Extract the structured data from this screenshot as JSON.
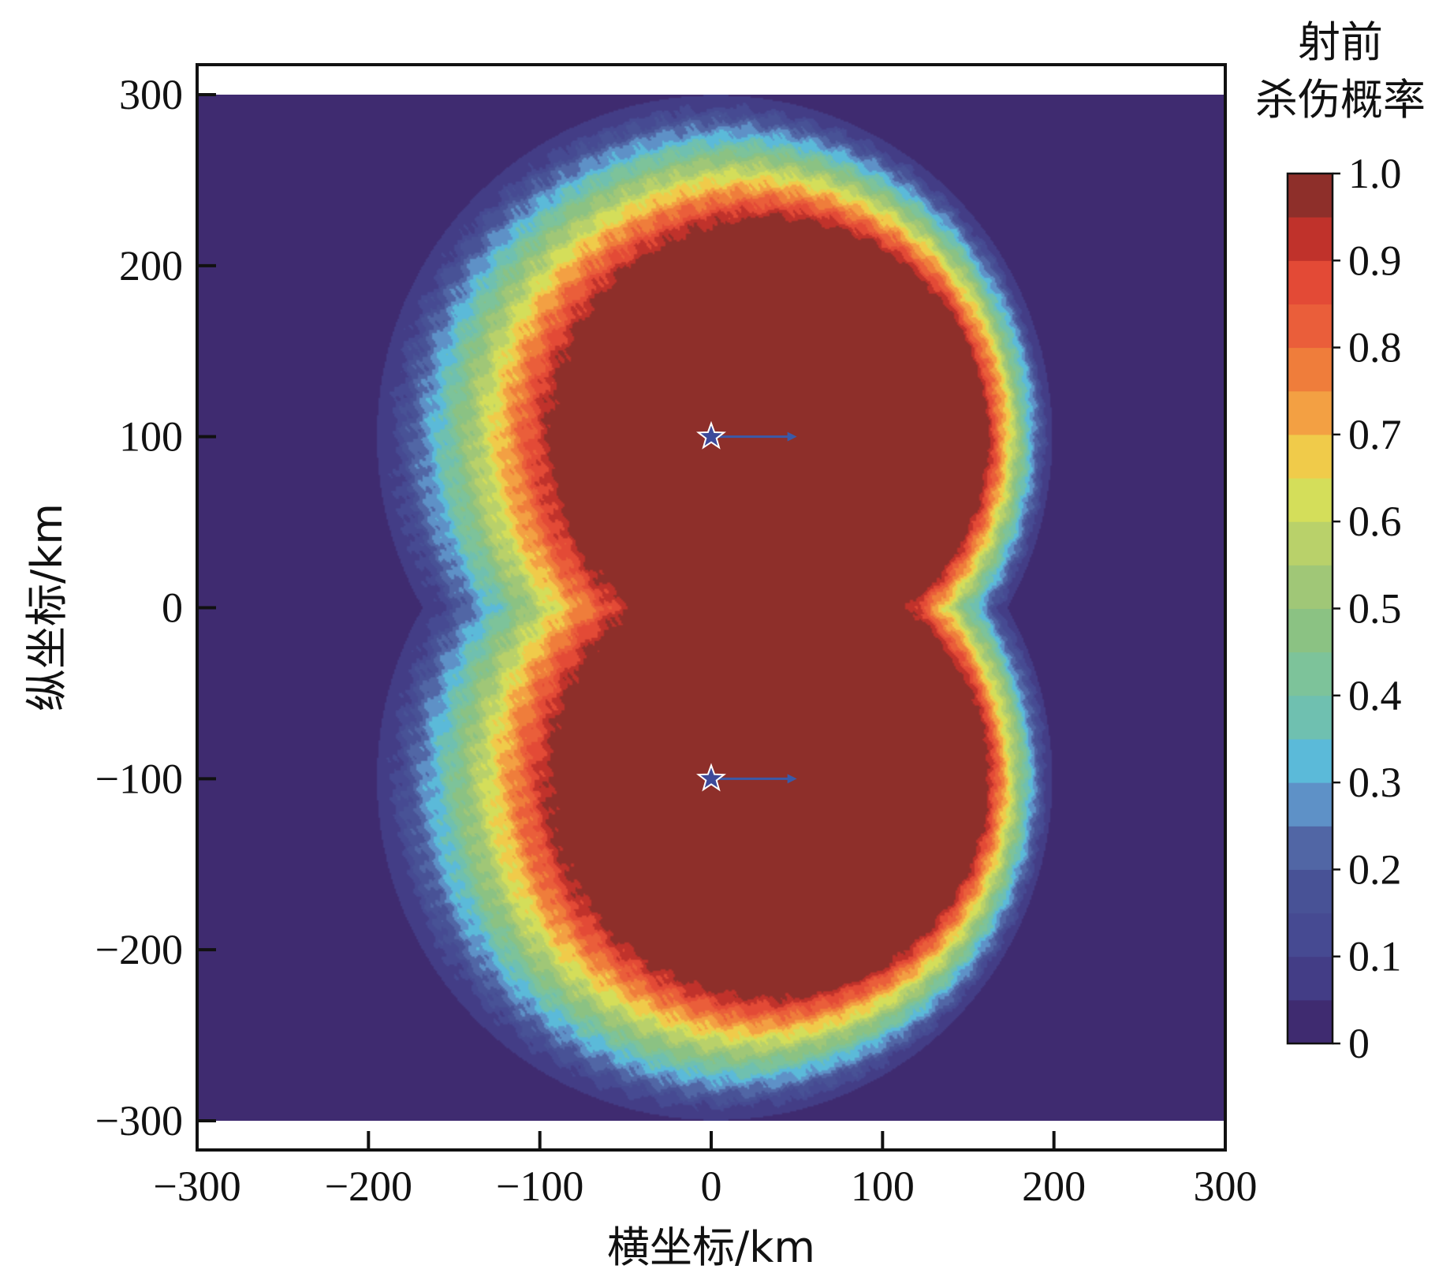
{
  "chart_data": {
    "type": "heatmap",
    "subtype": "filled-contour",
    "xlabel": "横坐标/km",
    "ylabel": "纵坐标/km",
    "xlim": [
      -300,
      300
    ],
    "ylim": [
      -300,
      300
    ],
    "xticks": [
      -300,
      -200,
      -100,
      0,
      100,
      200,
      300
    ],
    "yticks": [
      -300,
      -200,
      -100,
      0,
      100,
      200,
      300
    ],
    "xtick_labels": [
      "−300",
      "−200",
      "−100",
      "0",
      "100",
      "200",
      "300"
    ],
    "ytick_labels": [
      "−300",
      "−200",
      "−100",
      "0",
      "100",
      "200",
      "300"
    ],
    "colorbar": {
      "title_line1": "射前",
      "title_line2": "杀伤概率",
      "range": [
        0,
        1
      ],
      "ticks": [
        0,
        0.1,
        0.2,
        0.3,
        0.4,
        0.5,
        0.6,
        0.7,
        0.8,
        0.9,
        1.0
      ],
      "tick_labels": [
        "0",
        "0.1",
        "0.2",
        "0.3",
        "0.4",
        "0.5",
        "0.6",
        "0.7",
        "0.8",
        "0.9",
        "1.0"
      ],
      "levels_step": 0.05,
      "colors_low_to_high": [
        "#3f2b70",
        "#433d86",
        "#464a92",
        "#485296",
        "#5166a5",
        "#5e91c7",
        "#5bbad9",
        "#6fc0b0",
        "#7dc39a",
        "#8bc283",
        "#a0c777",
        "#b9d16a",
        "#d4de5a",
        "#f0cb4a",
        "#f3a043",
        "#ef7d3b",
        "#ea5e3a",
        "#e34a36",
        "#c0322b",
        "#8e2f2a"
      ]
    },
    "targets": [
      {
        "x": 0,
        "y": 100,
        "heading_to": [
          50,
          100
        ]
      },
      {
        "x": 0,
        "y": -100,
        "heading_to": [
          50,
          -100
        ]
      }
    ],
    "field_model": {
      "core_offset_x": 35,
      "core_radius": 125,
      "outer_radius_mean": 197,
      "outer_radius_cos_amp": 33,
      "x_max_extent": 200
    }
  }
}
